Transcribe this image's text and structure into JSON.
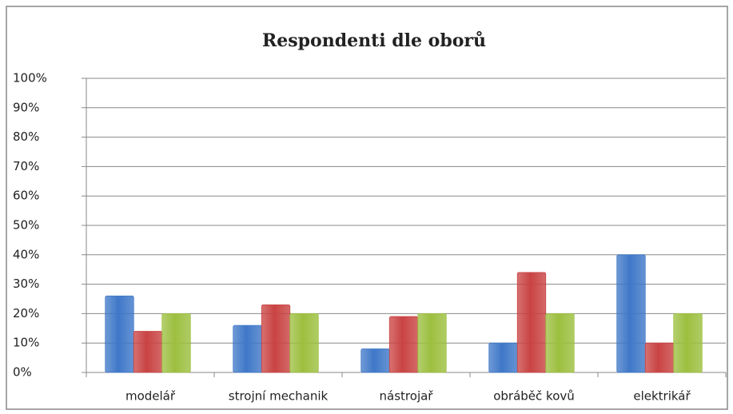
{
  "chart_data": {
    "type": "bar",
    "title": "Respondenti dle oborů",
    "categories": [
      "modelář",
      "strojní mechanik",
      "nástrojař",
      "obráběč kovů",
      "elektrikář"
    ],
    "series": [
      {
        "color": "#3f78c8",
        "values": [
          26,
          16,
          8,
          10,
          40
        ]
      },
      {
        "color": "#c94343",
        "values": [
          14,
          23,
          19,
          34,
          10
        ]
      },
      {
        "color": "#9cbf3f",
        "values": [
          20,
          20,
          20,
          20,
          20
        ]
      }
    ],
    "ylim": [
      0,
      100
    ],
    "yticks": [
      {
        "value": 0,
        "label": "0%"
      },
      {
        "value": 10,
        "label": "10%"
      },
      {
        "value": 20,
        "label": "20%"
      },
      {
        "value": 30,
        "label": "30%"
      },
      {
        "value": 40,
        "label": "40%"
      },
      {
        "value": 50,
        "label": "50%"
      },
      {
        "value": 60,
        "label": "60%"
      },
      {
        "value": 70,
        "label": "70%"
      },
      {
        "value": 80,
        "label": "80%"
      },
      {
        "value": 90,
        "label": "90%"
      },
      {
        "value": 100,
        "label": "100%"
      }
    ],
    "grid": true
  }
}
